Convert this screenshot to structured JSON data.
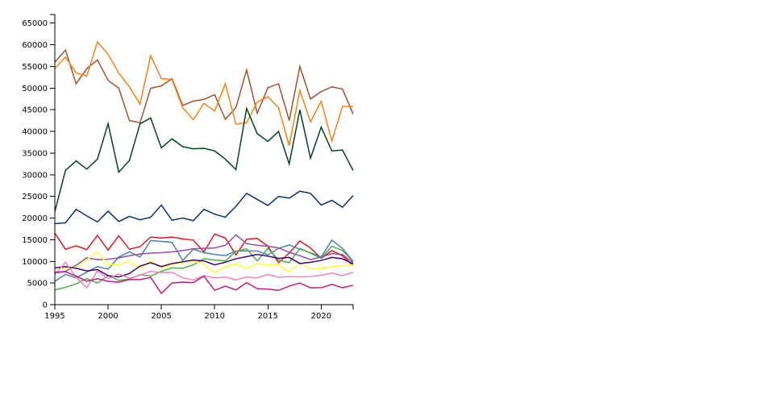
{
  "chart_data": {
    "type": "line",
    "title": "",
    "xlabel": "",
    "ylabel": "",
    "xlim": [
      1995,
      2023
    ],
    "ylim": [
      0,
      67000
    ],
    "grid": false,
    "legend": "none",
    "x_ticks": [
      "1995",
      "2000",
      "2005",
      "2010",
      "2015",
      "2020"
    ],
    "y_ticks": [
      "0",
      "5000",
      "10000",
      "15000",
      "20000",
      "25000",
      "30000",
      "35000",
      "40000",
      "45000",
      "50000",
      "55000",
      "60000",
      "65000"
    ],
    "x": [
      1995,
      1996,
      1997,
      1998,
      1999,
      2000,
      2001,
      2002,
      2003,
      2004,
      2005,
      2006,
      2007,
      2008,
      2009,
      2010,
      2011,
      2012,
      2013,
      2014,
      2015,
      2016,
      2017,
      2018,
      2019,
      2020,
      2021,
      2022,
      2023
    ],
    "series": [
      {
        "color": "#a0522d",
        "values": [
          56000,
          58800,
          51000,
          54500,
          56500,
          51800,
          50000,
          42500,
          42000,
          50000,
          50500,
          52200,
          46000,
          47000,
          47400,
          48500,
          42800,
          45500,
          54200,
          44200,
          50100,
          51000,
          42500,
          55000,
          47500,
          49200,
          50300,
          49800,
          44000
        ]
      },
      {
        "color": "#ff7f0e",
        "values": [
          54500,
          57200,
          53500,
          52800,
          60700,
          57800,
          53500,
          50300,
          46300,
          57500,
          52200,
          52000,
          45500,
          42700,
          46500,
          44700,
          51000,
          41700,
          42000,
          46800,
          48000,
          45500,
          36700,
          49500,
          42200,
          47000,
          37800,
          45800,
          45800
        ]
      },
      {
        "color": "#00441b",
        "values": [
          21500,
          31000,
          33200,
          31300,
          33600,
          41800,
          30600,
          33300,
          41800,
          43100,
          36200,
          38300,
          36500,
          36000,
          36100,
          35500,
          33600,
          31200,
          45300,
          39500,
          37700,
          40000,
          32500,
          45000,
          33800,
          41000,
          35500,
          35700,
          31000
        ]
      },
      {
        "color": "#08306b",
        "values": [
          18700,
          18900,
          22000,
          20500,
          19100,
          21600,
          19200,
          20400,
          19600,
          20200,
          23000,
          19500,
          20000,
          19400,
          22000,
          20900,
          20200,
          22700,
          25700,
          24300,
          22900,
          25000,
          24600,
          26200,
          25700,
          23000,
          24100,
          22500,
          25200
        ]
      },
      {
        "color": "#e41a1c",
        "values": [
          16500,
          12800,
          13600,
          12700,
          16000,
          12600,
          15900,
          12800,
          13400,
          15600,
          15400,
          15600,
          15200,
          14900,
          12200,
          16300,
          15400,
          11500,
          15100,
          15300,
          13500,
          9700,
          11900,
          14700,
          13100,
          10700,
          12500,
          11300,
          9000
        ]
      },
      {
        "color": "#4682b4",
        "values": [
          5400,
          7000,
          6200,
          7500,
          8800,
          8200,
          11000,
          12200,
          11000,
          14800,
          14600,
          14400,
          10200,
          12800,
          12000,
          11600,
          11300,
          12400,
          12400,
          12400,
          11500,
          13000,
          13800,
          12800,
          12000,
          11000,
          14900,
          13000,
          10000
        ]
      },
      {
        "color": "#4daf4a",
        "values": [
          3400,
          4000,
          4800,
          6000,
          5000,
          6700,
          5600,
          5900,
          6900,
          6600,
          7700,
          8500,
          8400,
          9200,
          10600,
          10300,
          10100,
          12300,
          12900,
          10100,
          13000,
          10300,
          9700,
          13000,
          11900,
          10700,
          13500,
          12500,
          10000
        ]
      },
      {
        "color": "#984ea3",
        "values": [
          7300,
          7700,
          9100,
          10800,
          10400,
          10500,
          10800,
          11300,
          11700,
          11900,
          12000,
          12200,
          12500,
          12900,
          13000,
          13100,
          13700,
          16100,
          14100,
          13700,
          13500,
          13100,
          12100,
          11300,
          10400,
          11000,
          11800,
          11600,
          9700
        ]
      },
      {
        "color": "#ffff33",
        "values": [
          8600,
          8300,
          8700,
          10300,
          12200,
          9300,
          9200,
          10100,
          8400,
          10100,
          8500,
          9200,
          9700,
          10100,
          9300,
          7400,
          8700,
          9400,
          8300,
          9500,
          9100,
          9300,
          7500,
          9700,
          8200,
          8500,
          8700,
          9000,
          9200
        ]
      },
      {
        "color": "#3f007d",
        "values": [
          8500,
          8800,
          8400,
          7800,
          8100,
          6700,
          6400,
          7200,
          8900,
          9700,
          8800,
          9500,
          9900,
          10300,
          10100,
          9200,
          9800,
          10600,
          11100,
          11600,
          11200,
          10700,
          10900,
          9500,
          9800,
          10200,
          10900,
          10600,
          9400
        ]
      },
      {
        "color": "#f781bf",
        "values": [
          6900,
          9800,
          6300,
          3900,
          7800,
          6000,
          7100,
          6100,
          6800,
          7700,
          7400,
          7500,
          6200,
          5700,
          6700,
          6200,
          6400,
          5700,
          6400,
          6200,
          7000,
          6300,
          6500,
          6400,
          6500,
          6800,
          7300,
          6700,
          7500
        ]
      },
      {
        "color": "#c51b7d",
        "values": [
          7500,
          7600,
          6600,
          5400,
          6000,
          5400,
          5200,
          5800,
          5800,
          6300,
          2600,
          5000,
          5200,
          5100,
          6600,
          3300,
          4300,
          3400,
          5100,
          3700,
          3600,
          3300,
          4300,
          5000,
          3900,
          3900,
          4700,
          3900,
          4500
        ]
      }
    ]
  }
}
